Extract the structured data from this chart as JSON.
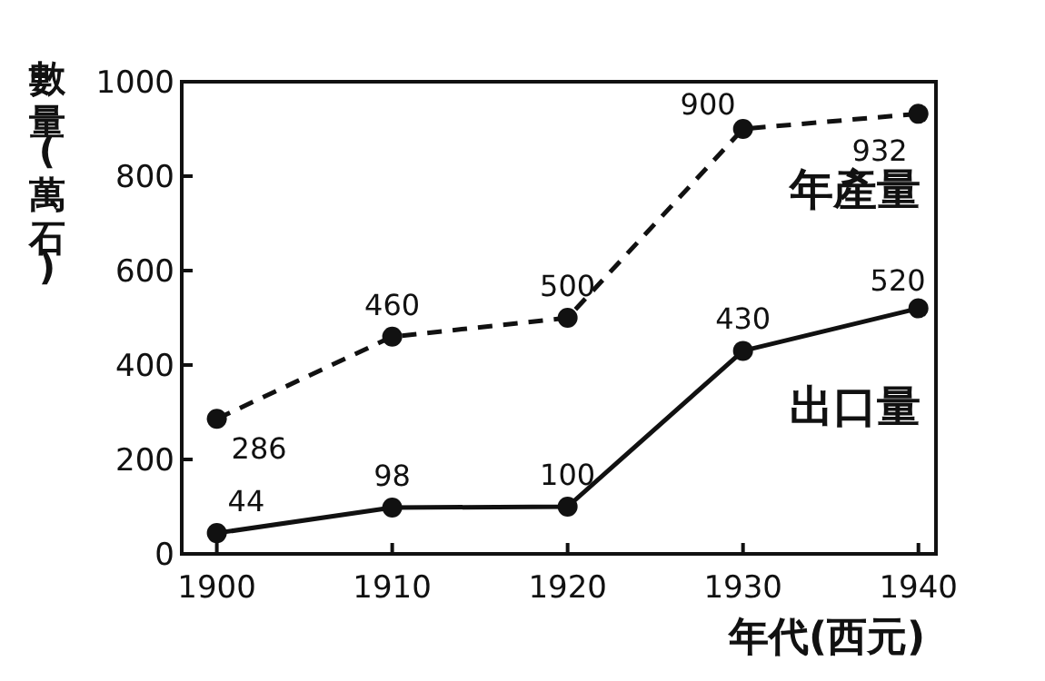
{
  "chart_data": {
    "type": "line",
    "xlabel": "年代(西元)",
    "ylabel": "數量(萬石)",
    "x": [
      1900,
      1910,
      1920,
      1930,
      1940
    ],
    "series": [
      {
        "name": "年產量",
        "color": "#111111",
        "values": [
          286,
          460,
          500,
          900,
          932
        ],
        "line_style": "dashed"
      },
      {
        "name": "出口量",
        "color": "#111111",
        "values": [
          44,
          98,
          100,
          430,
          520
        ],
        "line_style": "solid"
      }
    ],
    "xlim": [
      1898,
      1941
    ],
    "xticks": [
      1900,
      1910,
      1920,
      1930,
      1940
    ],
    "ylim": [
      0,
      1000
    ],
    "yticks": [
      0,
      200,
      400,
      600,
      800,
      1000
    ],
    "marker": "circle",
    "data_labels": true,
    "grid": false
  }
}
